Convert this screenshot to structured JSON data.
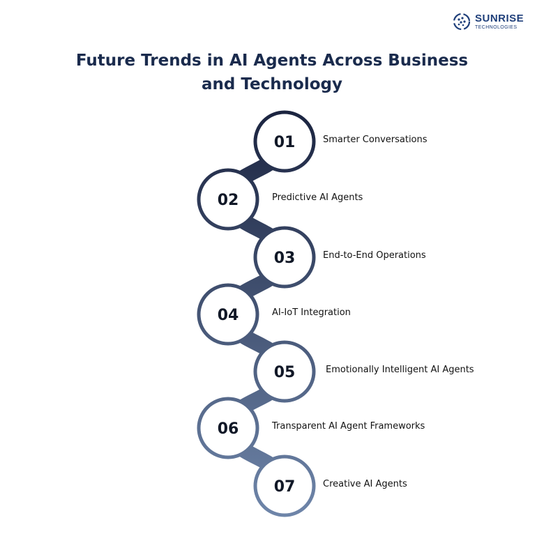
{
  "brand": {
    "name": "SUNRISE",
    "subtitle": "TECHNOLOGIES",
    "logo_icon": "dotted-globe-icon",
    "color": "#1f3f7a"
  },
  "title": {
    "line1": "Future Trends in AI Agents Across Business",
    "line2": "and Technology"
  },
  "colors": {
    "title": "#1a2b4d",
    "chain_top": "#1b2440",
    "chain_bottom": "#6f86aa"
  },
  "trends": [
    {
      "number": "01",
      "label": "Smarter Conversations"
    },
    {
      "number": "02",
      "label": "Predictive AI Agents"
    },
    {
      "number": "03",
      "label": "End-to-End Operations"
    },
    {
      "number": "04",
      "label": "AI-IoT Integration"
    },
    {
      "number": "05",
      "label": "Emotionally Intelligent AI Agents"
    },
    {
      "number": "06",
      "label": "Transparent AI Agent Frameworks"
    },
    {
      "number": "07",
      "label": "Creative AI Agents"
    }
  ]
}
